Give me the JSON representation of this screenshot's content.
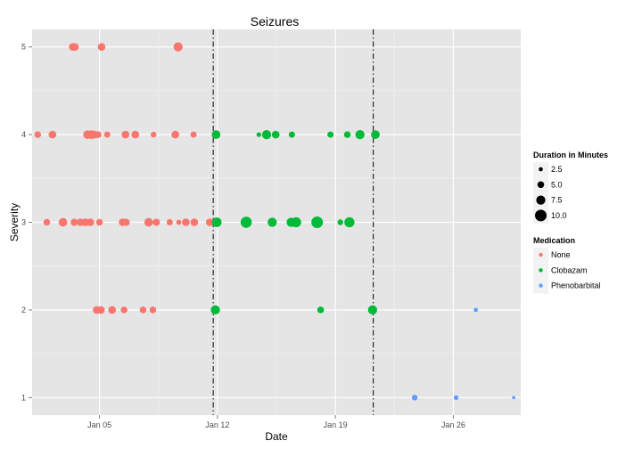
{
  "chart_data": {
    "type": "scatter",
    "title": "Seizures",
    "xlabel": "Date",
    "ylabel": "Severity",
    "x_axis": {
      "range": [
        "2015-01-01",
        "2015-01-30"
      ],
      "ticks": [
        {
          "date": "2015-01-05",
          "label": "Jan 05"
        },
        {
          "date": "2015-01-12",
          "label": "Jan 12"
        },
        {
          "date": "2015-01-19",
          "label": "Jan 19"
        },
        {
          "date": "2015-01-26",
          "label": "Jan 26"
        }
      ]
    },
    "y_axis": {
      "range": [
        0.8,
        5.2
      ],
      "ticks": [
        1,
        2,
        3,
        4,
        5
      ]
    },
    "grid": true,
    "vlines": [
      {
        "date": "2015-01-11 18:00",
        "style": "dashdot"
      },
      {
        "date": "2015-01-21 06:00",
        "style": "dashdot"
      }
    ],
    "legends": [
      {
        "title": "Duration in Minutes",
        "type": "size",
        "items": [
          {
            "label": "2.5",
            "value": 2.5
          },
          {
            "label": "5.0",
            "value": 5.0
          },
          {
            "label": "7.5",
            "value": 7.5
          },
          {
            "label": "10.0",
            "value": 10.0
          }
        ]
      },
      {
        "title": "Medication",
        "type": "color",
        "items": [
          {
            "label": "None",
            "color": "#F8766D"
          },
          {
            "label": "Clobazam",
            "color": "#00BA38"
          },
          {
            "label": "Phenobarbital",
            "color": "#619CFF"
          }
        ]
      }
    ],
    "series": [
      {
        "medication": "None",
        "color": "#F8766D",
        "points": [
          {
            "date": "2015-01-03 10:00",
            "severity": 5,
            "duration": 6
          },
          {
            "date": "2015-01-03 13:00",
            "severity": 5,
            "duration": 6
          },
          {
            "date": "2015-01-05 03:00",
            "severity": 5,
            "duration": 6
          },
          {
            "date": "2015-01-09 16:00",
            "severity": 5,
            "duration": 7.5
          },
          {
            "date": "2015-01-01 08:00",
            "severity": 4,
            "duration": 5
          },
          {
            "date": "2015-01-02 05:00",
            "severity": 4,
            "duration": 6
          },
          {
            "date": "2015-01-04 07:00",
            "severity": 4,
            "duration": 7
          },
          {
            "date": "2015-01-04 13:00",
            "severity": 4,
            "duration": 7
          },
          {
            "date": "2015-01-04 17:00",
            "severity": 4,
            "duration": 6
          },
          {
            "date": "2015-01-04 22:00",
            "severity": 4,
            "duration": 5
          },
          {
            "date": "2015-01-05 11:00",
            "severity": 4,
            "duration": 4.5
          },
          {
            "date": "2015-01-06 13:00",
            "severity": 4,
            "duration": 6
          },
          {
            "date": "2015-01-07 03:00",
            "severity": 4,
            "duration": 6
          },
          {
            "date": "2015-01-08 05:00",
            "severity": 4,
            "duration": 4
          },
          {
            "date": "2015-01-09 12:00",
            "severity": 4,
            "duration": 6
          },
          {
            "date": "2015-01-10 14:00",
            "severity": 4,
            "duration": 4.5
          },
          {
            "date": "2015-01-01 21:00",
            "severity": 3,
            "duration": 5
          },
          {
            "date": "2015-01-02 20:00",
            "severity": 3,
            "duration": 7
          },
          {
            "date": "2015-01-03 12:00",
            "severity": 3,
            "duration": 5.5
          },
          {
            "date": "2015-01-03 21:00",
            "severity": 3,
            "duration": 6
          },
          {
            "date": "2015-01-04 04:00",
            "severity": 3,
            "duration": 6
          },
          {
            "date": "2015-01-04 11:00",
            "severity": 3,
            "duration": 6
          },
          {
            "date": "2015-01-05 00:00",
            "severity": 3,
            "duration": 5
          },
          {
            "date": "2015-01-06 09:00",
            "severity": 3,
            "duration": 6
          },
          {
            "date": "2015-01-06 14:00",
            "severity": 3,
            "duration": 5.5
          },
          {
            "date": "2015-01-07 22:00",
            "severity": 3,
            "duration": 7
          },
          {
            "date": "2015-01-08 09:00",
            "severity": 3,
            "duration": 5.5
          },
          {
            "date": "2015-01-09 04:00",
            "severity": 3,
            "duration": 4.5
          },
          {
            "date": "2015-01-09 17:00",
            "severity": 3,
            "duration": 3.5
          },
          {
            "date": "2015-01-10 03:00",
            "severity": 3,
            "duration": 6
          },
          {
            "date": "2015-01-10 15:00",
            "severity": 3,
            "duration": 6
          },
          {
            "date": "2015-01-11 13:00",
            "severity": 3,
            "duration": 6
          },
          {
            "date": "2015-01-04 20:00",
            "severity": 2,
            "duration": 6
          },
          {
            "date": "2015-01-05 02:00",
            "severity": 2,
            "duration": 6
          },
          {
            "date": "2015-01-05 18:00",
            "severity": 2,
            "duration": 6
          },
          {
            "date": "2015-01-06 11:00",
            "severity": 2,
            "duration": 5
          },
          {
            "date": "2015-01-07 14:00",
            "severity": 2,
            "duration": 5
          },
          {
            "date": "2015-01-08 04:00",
            "severity": 2,
            "duration": 5
          }
        ]
      },
      {
        "medication": "Clobazam",
        "color": "#00BA38",
        "points": [
          {
            "date": "2015-01-11 22:00",
            "severity": 4,
            "duration": 7
          },
          {
            "date": "2015-01-14 11:00",
            "severity": 4,
            "duration": 3
          },
          {
            "date": "2015-01-14 22:00",
            "severity": 4,
            "duration": 7.5
          },
          {
            "date": "2015-01-15 11:00",
            "severity": 4,
            "duration": 6
          },
          {
            "date": "2015-01-16 10:00",
            "severity": 4,
            "duration": 4.5
          },
          {
            "date": "2015-01-18 17:00",
            "severity": 4,
            "duration": 4.5
          },
          {
            "date": "2015-01-19 17:00",
            "severity": 4,
            "duration": 5
          },
          {
            "date": "2015-01-20 11:00",
            "severity": 4,
            "duration": 7.5
          },
          {
            "date": "2015-01-21 09:00",
            "severity": 4,
            "duration": 7
          },
          {
            "date": "2015-01-11 23:00",
            "severity": 3,
            "duration": 8
          },
          {
            "date": "2015-01-13 17:00",
            "severity": 3,
            "duration": 9.5
          },
          {
            "date": "2015-01-15 06:00",
            "severity": 3,
            "duration": 7.5
          },
          {
            "date": "2015-01-16 09:00",
            "severity": 3,
            "duration": 7.5
          },
          {
            "date": "2015-01-16 16:00",
            "severity": 3,
            "duration": 8.5
          },
          {
            "date": "2015-01-17 22:00",
            "severity": 3,
            "duration": 10
          },
          {
            "date": "2015-01-19 07:00",
            "severity": 3,
            "duration": 4
          },
          {
            "date": "2015-01-19 20:00",
            "severity": 3,
            "duration": 8.5
          },
          {
            "date": "2015-01-11 21:00",
            "severity": 2,
            "duration": 7.5
          },
          {
            "date": "2015-01-18 03:00",
            "severity": 2,
            "duration": 5
          },
          {
            "date": "2015-01-21 05:00",
            "severity": 2,
            "duration": 7.5
          }
        ]
      },
      {
        "medication": "Phenobarbital",
        "color": "#619CFF",
        "points": [
          {
            "date": "2015-01-27 08:00",
            "severity": 2,
            "duration": 2.5
          },
          {
            "date": "2015-01-23 17:00",
            "severity": 1,
            "duration": 4
          },
          {
            "date": "2015-01-26 04:00",
            "severity": 1,
            "duration": 3
          },
          {
            "date": "2015-01-29 14:00",
            "severity": 1,
            "duration": 1.5
          }
        ]
      }
    ]
  }
}
